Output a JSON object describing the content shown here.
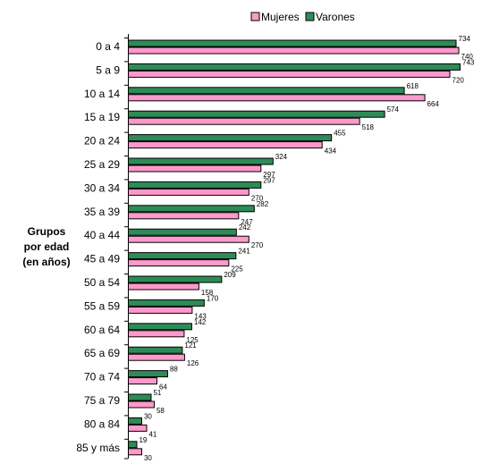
{
  "chart_data": {
    "type": "bar",
    "orientation": "horizontal",
    "ylabel": [
      "Grupos",
      "por edad",
      "(en años)"
    ],
    "categories": [
      "0 a 4",
      "5 a 9",
      "10 a 14",
      "15 a 19",
      "20 a 24",
      "25 a 29",
      "30 a 34",
      "35 a 39",
      "40 a 44",
      "45 a 49",
      "50 a 54",
      "55 a 59",
      "60 a 64",
      "65 a 69",
      "70 a 74",
      "75 a 79",
      "80 a 84",
      "85 y más"
    ],
    "series": [
      {
        "name": "Varones",
        "color": "#2e8b57",
        "values": [
          734,
          743,
          618,
          574,
          455,
          324,
          297,
          282,
          242,
          241,
          209,
          170,
          142,
          121,
          88,
          51,
          30,
          19
        ]
      },
      {
        "name": "Mujeres",
        "color": "#ff99cc",
        "values": [
          740,
          720,
          664,
          518,
          434,
          297,
          270,
          247,
          270,
          225,
          158,
          143,
          125,
          126,
          64,
          58,
          41,
          30
        ]
      }
    ],
    "legend": {
      "position": "top",
      "order": [
        "Mujeres",
        "Varones"
      ]
    },
    "xlim": [
      0,
      743
    ],
    "grid": false
  }
}
